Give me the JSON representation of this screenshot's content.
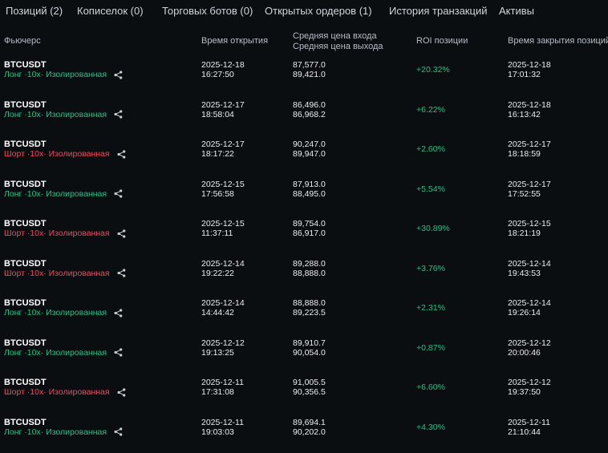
{
  "tabs": [
    {
      "label": "Позиций (2)"
    },
    {
      "label": "Кописелок (0)"
    },
    {
      "label": "Торговых ботов (0)"
    },
    {
      "label": "Открытых ордеров (1)"
    },
    {
      "label": "История транзакций"
    },
    {
      "label": "Активы"
    }
  ],
  "headers": {
    "futures": "Фьючерс",
    "open_time": "Время открытия",
    "entry_price": "Средняя цена входа",
    "exit_price": "Средняя цена выхода",
    "roi": "ROI позиции",
    "close_time": "Время закрытия позиций"
  },
  "colors": {
    "long": "#2ebd85",
    "short": "#f6465d",
    "positive": "#2ebd85"
  },
  "rows": [
    {
      "symbol": "BTCUSDT",
      "side": "long",
      "meta": "Лонг ·10x· Изолированная",
      "open_date": "2025-12-18",
      "open_time": "16:27:50",
      "entry": "87,577.0",
      "exit": "89,421.0",
      "roi": "+20.32%",
      "close_date": "2025-12-18",
      "close_time": "17:01:32"
    },
    {
      "symbol": "BTCUSDT",
      "side": "long",
      "meta": "Лонг ·10x· Изолированная",
      "open_date": "2025-12-17",
      "open_time": "18:58:04",
      "entry": "86,496.0",
      "exit": "86,968.2",
      "roi": "+6.22%",
      "close_date": "2025-12-18",
      "close_time": "16:13:42"
    },
    {
      "symbol": "BTCUSDT",
      "side": "short",
      "meta": "Шорт ·10x· Изолированная",
      "open_date": "2025-12-17",
      "open_time": "18:17:22",
      "entry": "90,247.0",
      "exit": "89,947.0",
      "roi": "+2.60%",
      "close_date": "2025-12-17",
      "close_time": "18:18:59"
    },
    {
      "symbol": "BTCUSDT",
      "side": "long",
      "meta": "Лонг ·10x· Изолированная",
      "open_date": "2025-12-15",
      "open_time": "17:56:58",
      "entry": "87,913.0",
      "exit": "88,495.0",
      "roi": "+5.54%",
      "close_date": "2025-12-17",
      "close_time": "17:52:55"
    },
    {
      "symbol": "BTCUSDT",
      "side": "short",
      "meta": "Шорт ·10x· Изолированная",
      "open_date": "2025-12-15",
      "open_time": "11:37:11",
      "entry": "89,754.0",
      "exit": "86,917.0",
      "roi": "+30.89%",
      "close_date": "2025-12-15",
      "close_time": "18:21:19"
    },
    {
      "symbol": "BTCUSDT",
      "side": "short",
      "meta": "Шорт ·10x· Изолированная",
      "open_date": "2025-12-14",
      "open_time": "19:22:22",
      "entry": "89,288.0",
      "exit": "88,888.0",
      "roi": "+3.76%",
      "close_date": "2025-12-14",
      "close_time": "19:43:53"
    },
    {
      "symbol": "BTCUSDT",
      "side": "long",
      "meta": "Лонг ·10x· Изолированная",
      "open_date": "2025-12-14",
      "open_time": "14:44:42",
      "entry": "88,888.0",
      "exit": "89,223.5",
      "roi": "+2.31%",
      "close_date": "2025-12-14",
      "close_time": "19:26:14"
    },
    {
      "symbol": "BTCUSDT",
      "side": "long",
      "meta": "Лонг ·10x· Изолированная",
      "open_date": "2025-12-12",
      "open_time": "19:13:25",
      "entry": "89,910.7",
      "exit": "90,054.0",
      "roi": "+0.87%",
      "close_date": "2025-12-12",
      "close_time": "20:00:46"
    },
    {
      "symbol": "BTCUSDT",
      "side": "short",
      "meta": "Шорт ·10x· Изолированная",
      "open_date": "2025-12-11",
      "open_time": "17:31:08",
      "entry": "91,005.5",
      "exit": "90,356.5",
      "roi": "+6.60%",
      "close_date": "2025-12-12",
      "close_time": "19:37:50"
    },
    {
      "symbol": "BTCUSDT",
      "side": "long",
      "meta": "Лонг ·10x· Изолированная",
      "open_date": "2025-12-11",
      "open_time": "19:03:03",
      "entry": "89,694.1",
      "exit": "90,202.0",
      "roi": "+4.30%",
      "close_date": "2025-12-11",
      "close_time": "21:10:44"
    }
  ]
}
